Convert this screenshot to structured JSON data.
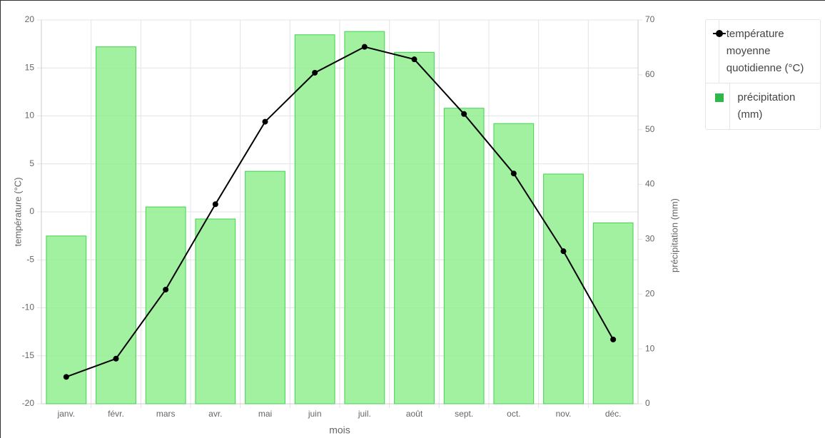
{
  "chart_data": {
    "type": "combo",
    "categories": [
      "janv.",
      "févr.",
      "mars",
      "avr.",
      "mai",
      "juin",
      "juil.",
      "août",
      "sept.",
      "oct.",
      "nov.",
      "déc."
    ],
    "series": [
      {
        "name": "température moyenne quotidienne (°C)",
        "type": "line",
        "axis": "y",
        "color": "#000000",
        "values": [
          -17.2,
          -15.3,
          -8.1,
          0.8,
          9.4,
          14.5,
          17.2,
          15.9,
          10.2,
          4.0,
          -4.1,
          -13.3
        ]
      },
      {
        "name": "précipitation (mm)",
        "type": "bar",
        "axis": "y2",
        "color": "#3fd44c",
        "values": [
          30.6,
          65.1,
          35.9,
          33.7,
          42.4,
          67.3,
          67.9,
          64.1,
          53.9,
          51.1,
          41.9,
          33.0
        ]
      }
    ],
    "xlabel": "mois",
    "ylabel": "température (°C)",
    "y2label": "précipitation (mm)",
    "ylim": [
      -20,
      20
    ],
    "yticks": [
      -20,
      -15,
      -10,
      -5,
      0,
      5,
      10,
      15,
      20
    ],
    "y2lim": [
      0,
      70
    ],
    "y2ticks": [
      0,
      10,
      20,
      30,
      40,
      50,
      60,
      70
    ],
    "grid": true,
    "legend": "right"
  }
}
